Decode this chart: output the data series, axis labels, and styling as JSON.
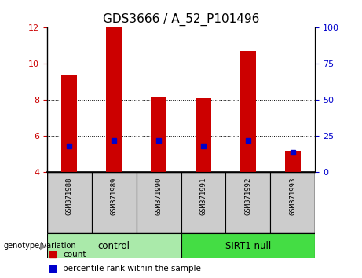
{
  "title": "GDS3666 / A_52_P101496",
  "samples": [
    "GSM371988",
    "GSM371989",
    "GSM371990",
    "GSM371991",
    "GSM371992",
    "GSM371993"
  ],
  "count_values": [
    9.4,
    12.0,
    8.2,
    8.1,
    10.7,
    5.2
  ],
  "percentile_right_values": [
    18,
    22,
    22,
    18,
    22,
    14
  ],
  "ylim_left": [
    4,
    12
  ],
  "yticks_left": [
    4,
    6,
    8,
    10,
    12
  ],
  "ylim_right": [
    0,
    100
  ],
  "yticks_right": [
    0,
    25,
    50,
    75,
    100
  ],
  "bar_bottom": 4.0,
  "groups": [
    {
      "label": "control",
      "indices": [
        0,
        1,
        2
      ],
      "color": "#AAEAAA"
    },
    {
      "label": "SIRT1 null",
      "indices": [
        3,
        4,
        5
      ],
      "color": "#44DD44"
    }
  ],
  "count_color": "#CC0000",
  "percentile_color": "#0000CC",
  "bar_width": 0.35,
  "genotype_label": "genotype/variation",
  "legend_count": "count",
  "legend_percentile": "percentile rank within the sample",
  "tick_label_color_left": "#CC0000",
  "tick_label_color_right": "#0000CC",
  "title_fontsize": 11,
  "tick_fontsize": 8,
  "sample_label_bg": "#CCCCCC"
}
